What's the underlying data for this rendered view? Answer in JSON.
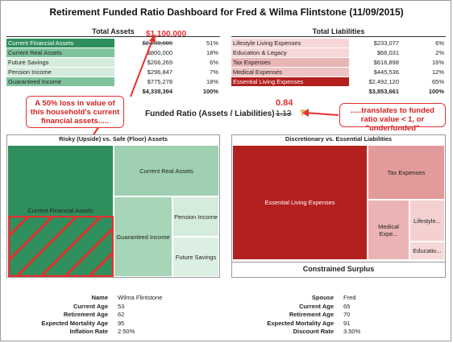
{
  "title": "Retirement Funded Ratio Dashboard for Fred & Wilma Flintstone (11/09/2015)",
  "assets": {
    "header": "Total Assets",
    "rows": [
      {
        "label": "Current Financial Assets",
        "value": "$2,200,000",
        "pct": "51%"
      },
      {
        "label": "Current Real Assets",
        "value": "$800,000",
        "pct": "18%"
      },
      {
        "label": "Future Savings",
        "value": "$266,269",
        "pct": "6%"
      },
      {
        "label": "Pension Income",
        "value": "$296,847",
        "pct": "7%"
      },
      {
        "label": "Guaranteed Income",
        "value": "$775,278",
        "pct": "18%"
      }
    ],
    "total_value": "$4,338,394",
    "total_pct": "100%",
    "new_value": "$1,100,000"
  },
  "liabilities": {
    "header": "Total Liabilities",
    "rows": [
      {
        "label": "Lifestyle Living Expenses",
        "value": "$233,077",
        "pct": "6%"
      },
      {
        "label": "Education & Legacy",
        "value": "$66,031",
        "pct": "2%"
      },
      {
        "label": "Tax Expenses",
        "value": "$616,898",
        "pct": "16%"
      },
      {
        "label": "Medical Expenses",
        "value": "$445,536",
        "pct": "12%"
      },
      {
        "label": "Essential Living Expenses",
        "value": "$2,492,120",
        "pct": "65%"
      }
    ],
    "total_value": "$3,853,661",
    "total_pct": "100%"
  },
  "funded_ratio": {
    "label": "Funded Ratio (Assets / Liabilities)",
    "old_value": "1.13",
    "new_value": "0.84",
    "question_mark": "?"
  },
  "callouts": {
    "left": "A 50% loss in value of this household's current financial assets.....",
    "right": ".....translates to funded ratio value < 1, or \"underfunded\""
  },
  "treemap_assets": {
    "title": "Risky (Upside) vs. Safe (Floor) Assets",
    "cells": {
      "financial": "Current Financial Assets",
      "real": "Current Real Assets",
      "guaranteed": "Guaranteed Income",
      "pension": "Pension Income",
      "future": "Future Savings"
    }
  },
  "treemap_liabilities": {
    "title": "Discretionary vs. Essential Liabilities",
    "cells": {
      "essential": "Essential Living Expenses",
      "tax": "Tax Expenses",
      "medical": "Medical Expe...",
      "lifestyle": "Lifestyle...",
      "education": "Educatio..."
    },
    "surplus_title": "Constrained Surplus"
  },
  "profile_left": [
    {
      "label": "Name",
      "value": "Wilma Flintstone"
    },
    {
      "label": "Current Age",
      "value": "53"
    },
    {
      "label": "Retirement Age",
      "value": "62"
    },
    {
      "label": "Expected Mortality Age",
      "value": "95"
    },
    {
      "label": "Inflation Rate",
      "value": "2.50%"
    }
  ],
  "profile_right": [
    {
      "label": "Spouse",
      "value": "Fred"
    },
    {
      "label": "Current Age",
      "value": "65"
    },
    {
      "label": "Retirement Age",
      "value": "70"
    },
    {
      "label": "Expected Mortality Age",
      "value": "91"
    },
    {
      "label": "Discount Rate",
      "value": "3.50%"
    }
  ],
  "colors": {
    "asset_dark": "#2f8f5c",
    "asset_mid": "#7fc29c",
    "asset_light": "#c9e6d4",
    "liab_dark": "#b3201e",
    "liab_mid": "#e7a8a8",
    "liab_light": "#f6d6d6",
    "callout_red": "#e53030"
  }
}
